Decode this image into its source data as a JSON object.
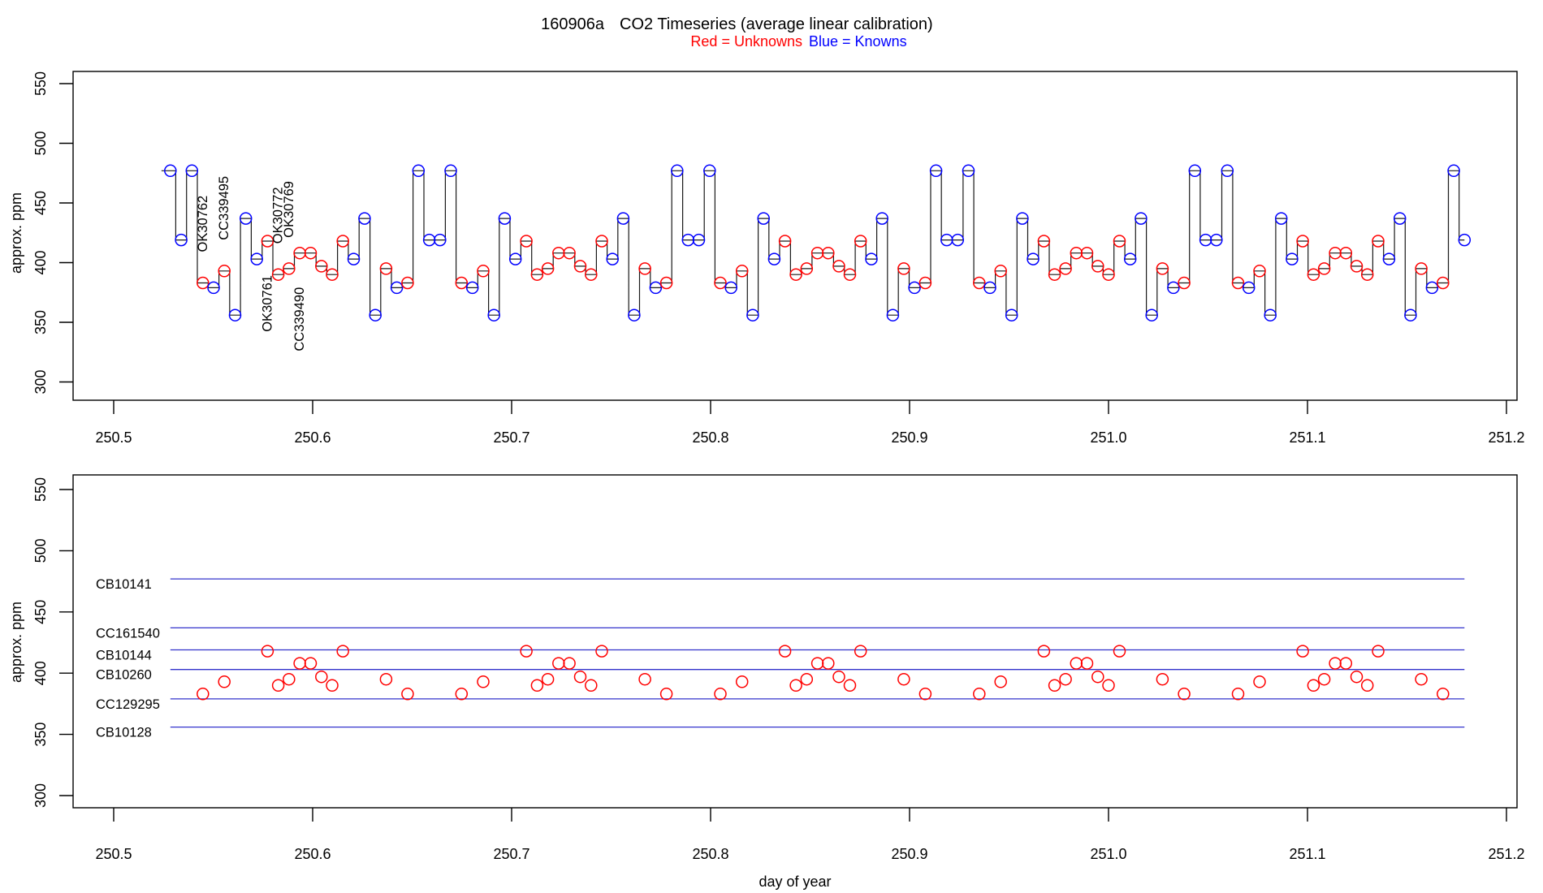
{
  "title": {
    "run_id": "160906a",
    "text": "CO2 Timeseries (average linear calibration)"
  },
  "legend": {
    "unknowns": "Red = Unknowns",
    "knowns": "Blue = Knowns"
  },
  "colors": {
    "unknown": "#FF0000",
    "known": "#0000FF",
    "known_line": "#3333CC",
    "series_line": "#1a1a1a",
    "axis": "#000000"
  },
  "axes": {
    "y_label": "approx. ppm",
    "x_label": "day of year",
    "x_ticks": [
      250.5,
      250.6,
      250.7,
      250.8,
      250.9,
      251.0,
      251.1,
      251.2
    ],
    "y_ticks": [
      300,
      350,
      400,
      450,
      500,
      550
    ],
    "x_range": [
      250.5,
      251.2
    ],
    "y_range": [
      300,
      550
    ]
  },
  "chart_data": [
    {
      "type": "line",
      "panel": "top",
      "marker": "open-circle",
      "line_style": "step",
      "xlabel": "day of year",
      "ylabel": "approx. ppm",
      "xlim": [
        250.5,
        251.2
      ],
      "ylim": [
        300,
        550
      ],
      "points": [
        [
          250.5285,
          477,
          "K"
        ],
        [
          250.5339,
          419,
          "K"
        ],
        [
          250.5393,
          477,
          "K"
        ],
        [
          250.5448,
          383,
          "U"
        ],
        [
          250.5502,
          379,
          "K"
        ],
        [
          250.5556,
          393,
          "U"
        ],
        [
          250.561,
          356,
          "K"
        ],
        [
          250.5664,
          437,
          "K"
        ],
        [
          250.5719,
          403,
          "K"
        ],
        [
          250.5773,
          418,
          "U"
        ],
        [
          250.5827,
          390,
          "U"
        ],
        [
          250.5881,
          395,
          "U"
        ],
        [
          250.5935,
          408,
          "U"
        ],
        [
          250.599,
          408,
          "U"
        ],
        [
          250.6044,
          397,
          "U"
        ],
        [
          250.6098,
          390,
          "U"
        ],
        [
          250.6152,
          418,
          "U"
        ],
        [
          250.6206,
          403,
          "K"
        ],
        [
          250.6261,
          437,
          "K"
        ],
        [
          250.6315,
          356,
          "K"
        ],
        [
          250.6369,
          395,
          "U"
        ],
        [
          250.6423,
          379,
          "K"
        ],
        [
          250.6477,
          383,
          "U"
        ],
        [
          250.6532,
          477,
          "K"
        ],
        [
          250.6586,
          419,
          "K"
        ],
        [
          250.664,
          419,
          "K"
        ],
        [
          250.6694,
          477,
          "K"
        ],
        [
          250.6748,
          383,
          "U"
        ],
        [
          250.6803,
          379,
          "K"
        ],
        [
          250.6857,
          393,
          "U"
        ],
        [
          250.6911,
          356,
          "K"
        ],
        [
          250.6965,
          437,
          "K"
        ],
        [
          250.7019,
          403,
          "K"
        ],
        [
          250.7074,
          418,
          "U"
        ],
        [
          250.7128,
          390,
          "U"
        ],
        [
          250.7182,
          395,
          "U"
        ],
        [
          250.7236,
          408,
          "U"
        ],
        [
          250.729,
          408,
          "U"
        ],
        [
          250.7345,
          397,
          "U"
        ],
        [
          250.7399,
          390,
          "U"
        ],
        [
          250.7453,
          418,
          "U"
        ],
        [
          250.7507,
          403,
          "K"
        ],
        [
          250.7561,
          437,
          "K"
        ],
        [
          250.7616,
          356,
          "K"
        ],
        [
          250.767,
          395,
          "U"
        ],
        [
          250.7724,
          379,
          "K"
        ],
        [
          250.7778,
          383,
          "U"
        ],
        [
          250.7832,
          477,
          "K"
        ],
        [
          250.7887,
          419,
          "K"
        ],
        [
          250.7941,
          419,
          "K"
        ],
        [
          250.7995,
          477,
          "K"
        ],
        [
          250.8049,
          383,
          "U"
        ],
        [
          250.8103,
          379,
          "K"
        ],
        [
          250.8158,
          393,
          "U"
        ],
        [
          250.8212,
          356,
          "K"
        ],
        [
          250.8266,
          437,
          "K"
        ],
        [
          250.832,
          403,
          "K"
        ],
        [
          250.8374,
          418,
          "U"
        ],
        [
          250.8429,
          390,
          "U"
        ],
        [
          250.8483,
          395,
          "U"
        ],
        [
          250.8537,
          408,
          "U"
        ],
        [
          250.8591,
          408,
          "U"
        ],
        [
          250.8645,
          397,
          "U"
        ],
        [
          250.87,
          390,
          "U"
        ],
        [
          250.8754,
          418,
          "U"
        ],
        [
          250.8808,
          403,
          "K"
        ],
        [
          250.8862,
          437,
          "K"
        ],
        [
          250.8916,
          356,
          "K"
        ],
        [
          250.8971,
          395,
          "U"
        ],
        [
          250.9025,
          379,
          "K"
        ],
        [
          250.9079,
          383,
          "U"
        ],
        [
          250.9133,
          477,
          "K"
        ],
        [
          250.9187,
          419,
          "K"
        ],
        [
          250.9242,
          419,
          "K"
        ],
        [
          250.9296,
          477,
          "K"
        ],
        [
          250.935,
          383,
          "U"
        ],
        [
          250.9404,
          379,
          "K"
        ],
        [
          250.9458,
          393,
          "U"
        ],
        [
          250.9513,
          356,
          "K"
        ],
        [
          250.9567,
          437,
          "K"
        ],
        [
          250.9621,
          403,
          "K"
        ],
        [
          250.9675,
          418,
          "U"
        ],
        [
          250.9729,
          390,
          "U"
        ],
        [
          250.9784,
          395,
          "U"
        ],
        [
          250.9838,
          408,
          "U"
        ],
        [
          250.9892,
          408,
          "U"
        ],
        [
          250.9946,
          397,
          "U"
        ],
        [
          251.0,
          390,
          "U"
        ],
        [
          251.0055,
          418,
          "U"
        ],
        [
          251.0109,
          403,
          "K"
        ],
        [
          251.0163,
          437,
          "K"
        ],
        [
          251.0217,
          356,
          "K"
        ],
        [
          251.0271,
          395,
          "U"
        ],
        [
          251.0326,
          379,
          "K"
        ],
        [
          251.038,
          383,
          "U"
        ],
        [
          251.0434,
          477,
          "K"
        ],
        [
          251.0488,
          419,
          "K"
        ],
        [
          251.0542,
          419,
          "K"
        ],
        [
          251.0597,
          477,
          "K"
        ],
        [
          251.0651,
          383,
          "U"
        ],
        [
          251.0705,
          379,
          "K"
        ],
        [
          251.0759,
          393,
          "U"
        ],
        [
          251.0813,
          356,
          "K"
        ],
        [
          251.0868,
          437,
          "K"
        ],
        [
          251.0922,
          403,
          "K"
        ],
        [
          251.0976,
          418,
          "U"
        ],
        [
          251.103,
          390,
          "U"
        ],
        [
          251.1084,
          395,
          "U"
        ],
        [
          251.1139,
          408,
          "U"
        ],
        [
          251.1193,
          408,
          "U"
        ],
        [
          251.1247,
          397,
          "U"
        ],
        [
          251.1301,
          390,
          "U"
        ],
        [
          251.1355,
          418,
          "U"
        ],
        [
          251.141,
          403,
          "K"
        ],
        [
          251.1464,
          437,
          "K"
        ],
        [
          251.1518,
          356,
          "K"
        ],
        [
          251.1572,
          395,
          "U"
        ],
        [
          251.1626,
          379,
          "K"
        ],
        [
          251.1681,
          383,
          "U"
        ],
        [
          251.1735,
          477,
          "K"
        ],
        [
          251.1789,
          419,
          "K"
        ]
      ],
      "point_flag_meaning": {
        "K": "known (blue)",
        "U": "unknown (red)"
      },
      "point_labels": [
        {
          "text": "OK30762",
          "index": 3,
          "side": "above"
        },
        {
          "text": "CC339495",
          "index": 5,
          "side": "above"
        },
        {
          "text": "OK30761",
          "index": 9,
          "side": "below"
        },
        {
          "text": "OK30772",
          "index": 10,
          "side": "above"
        },
        {
          "text": "OK30769",
          "index": 11,
          "side": "above"
        },
        {
          "text": "CC339490",
          "index": 12,
          "side": "below"
        }
      ]
    },
    {
      "type": "scatter",
      "panel": "bottom",
      "marker": "open-circle",
      "xlabel": "day of year",
      "ylabel": "approx. ppm",
      "xlim": [
        250.5,
        251.2
      ],
      "ylim": [
        300,
        550
      ],
      "note": "red unknown points replotted against known standard lines",
      "known_lines": [
        {
          "label": "CB10141",
          "value": 477
        },
        {
          "label": "CC161540",
          "value": 437
        },
        {
          "label": "CB10144",
          "value": 419
        },
        {
          "label": "CB10260",
          "value": 403
        },
        {
          "label": "CC129295",
          "value": 379
        },
        {
          "label": "CB10128",
          "value": 356
        }
      ],
      "line_span": [
        250.5285,
        251.1789
      ]
    }
  ]
}
